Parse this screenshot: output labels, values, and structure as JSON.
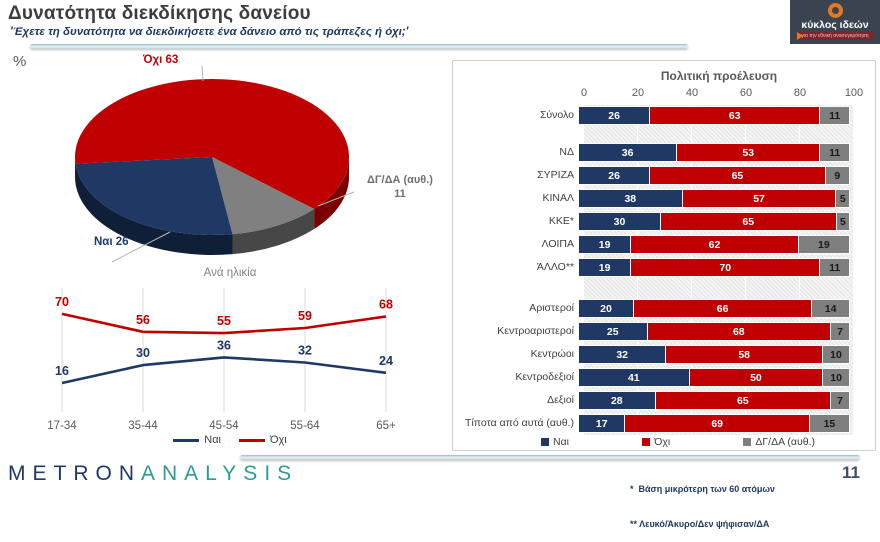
{
  "header": {
    "title": "Δυνατότητα διεκδίκησης δανείου",
    "subtitle": "'Έχετε τη δυνατότητα να διεκδικήσετε ένα δάνειο από τις τράπεζες ή όχι;'",
    "percent_symbol": "%"
  },
  "logo": {
    "brand": "κύκλος ιδεών",
    "tagline": "για την εθνική ανασυγκρότηση"
  },
  "colors": {
    "yes_navy": "#1F3864",
    "no_red": "#C00000",
    "dk_gray": "#7F7F7F",
    "accent_teal": "#2B9B94"
  },
  "chart_data": [
    {
      "type": "pie",
      "unit": "%",
      "slices": [
        {
          "label": "Όχι",
          "value": 63,
          "color": "#C00000",
          "side_color": "#7A0000",
          "callout": "Όχι 63"
        },
        {
          "label": "ΔΓ/ΔΑ (αυθ.)",
          "value": 11,
          "color": "#808080",
          "side_color": "#474747",
          "callout": "ΔΓ/ΔΑ (αυθ.)",
          "callout2": "11"
        },
        {
          "label": "Ναι",
          "value": 26,
          "color": "#1F3864",
          "side_color": "#101F38",
          "callout": "Ναι 26"
        }
      ]
    },
    {
      "type": "line",
      "title": "Ανά ηλικία",
      "categories": [
        "17-34",
        "35-44",
        "45-54",
        "55-64",
        "65+"
      ],
      "series": [
        {
          "name": "Ναι",
          "color": "#1F3864",
          "values": [
            16,
            30,
            36,
            32,
            24
          ]
        },
        {
          "name": "Όχι",
          "color": "#C00000",
          "values": [
            70,
            56,
            55,
            59,
            68
          ]
        }
      ],
      "legend_position": "bottom",
      "grid": "vertical"
    },
    {
      "type": "bar",
      "stacked": true,
      "orientation": "horizontal",
      "title": "Πολιτική προέλευση",
      "axis_ticks": [
        0,
        20,
        40,
        60,
        80,
        100
      ],
      "xlim": [
        0,
        100
      ],
      "categories": [
        "Σύνολο",
        "ΝΔ",
        "ΣΥΡΙΖΑ",
        "ΚΙΝΑΛ",
        "ΚΚΕ*",
        "ΛΟΙΠΑ",
        "ΆΛΛΟ**",
        "Αριστεροί",
        "Κεντροαριστεροί",
        "Κεντρώοι",
        "Κεντροδεξιοί",
        "Δεξιοί",
        "Τίποτα από αυτά (αυθ.)"
      ],
      "separator_after_rows": [
        0,
        6
      ],
      "series": [
        {
          "name": "Ναι",
          "color": "#1F3864",
          "label_color": "#ffffff",
          "values": [
            26,
            36,
            26,
            38,
            30,
            19,
            19,
            20,
            25,
            32,
            41,
            28,
            17
          ]
        },
        {
          "name": "Όχι",
          "color": "#C00000",
          "label_color": "#ffffff",
          "values": [
            63,
            53,
            65,
            57,
            65,
            62,
            70,
            66,
            68,
            58,
            50,
            65,
            69
          ]
        },
        {
          "name": "ΔΓ/ΔΑ (αυθ.)",
          "color": "#7F7F7F",
          "label_color": "#1a1a1a",
          "values": [
            11,
            11,
            9,
            5,
            5,
            19,
            11,
            14,
            7,
            10,
            10,
            7,
            15
          ]
        }
      ],
      "legend_position": "bottom"
    }
  ],
  "footer": {
    "brand_primary": "METRON",
    "brand_secondary": "ANALYSIS",
    "note1": "*  Βάση μικρότερη των 60 ατόμων",
    "note2": "** Λευκό/Άκυρο/Δεν ψήφισαν/ΔΑ",
    "page_number": "11"
  }
}
